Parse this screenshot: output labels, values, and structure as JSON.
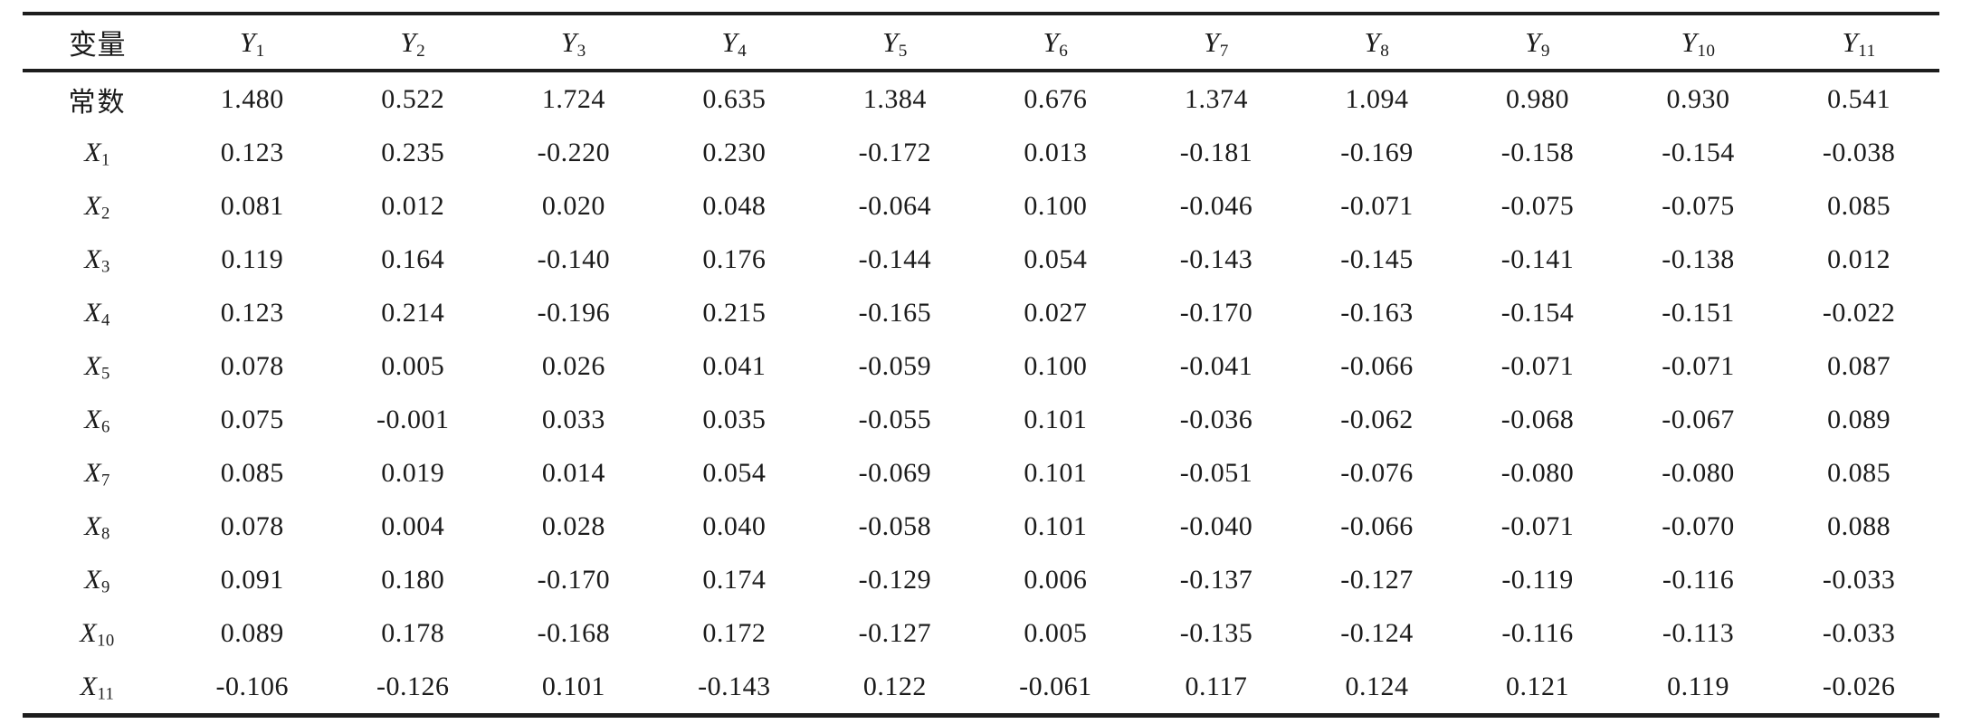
{
  "table": {
    "row_header_label": "变量",
    "columns": [
      {
        "base": "Y",
        "sub": "1"
      },
      {
        "base": "Y",
        "sub": "2"
      },
      {
        "base": "Y",
        "sub": "3"
      },
      {
        "base": "Y",
        "sub": "4"
      },
      {
        "base": "Y",
        "sub": "5"
      },
      {
        "base": "Y",
        "sub": "6"
      },
      {
        "base": "Y",
        "sub": "7"
      },
      {
        "base": "Y",
        "sub": "8"
      },
      {
        "base": "Y",
        "sub": "9"
      },
      {
        "base": "Y",
        "sub": "10"
      },
      {
        "base": "Y",
        "sub": "11"
      }
    ],
    "rows": [
      {
        "label": {
          "text": "常数"
        },
        "values": [
          "1.480",
          "0.522",
          "1.724",
          "0.635",
          "1.384",
          "0.676",
          "1.374",
          "1.094",
          "0.980",
          "0.930",
          "0.541"
        ]
      },
      {
        "label": {
          "base": "X",
          "sub": "1"
        },
        "values": [
          "0.123",
          "0.235",
          "-0.220",
          "0.230",
          "-0.172",
          "0.013",
          "-0.181",
          "-0.169",
          "-0.158",
          "-0.154",
          "-0.038"
        ]
      },
      {
        "label": {
          "base": "X",
          "sub": "2"
        },
        "values": [
          "0.081",
          "0.012",
          "0.020",
          "0.048",
          "-0.064",
          "0.100",
          "-0.046",
          "-0.071",
          "-0.075",
          "-0.075",
          "0.085"
        ]
      },
      {
        "label": {
          "base": "X",
          "sub": "3"
        },
        "values": [
          "0.119",
          "0.164",
          "-0.140",
          "0.176",
          "-0.144",
          "0.054",
          "-0.143",
          "-0.145",
          "-0.141",
          "-0.138",
          "0.012"
        ]
      },
      {
        "label": {
          "base": "X",
          "sub": "4"
        },
        "values": [
          "0.123",
          "0.214",
          "-0.196",
          "0.215",
          "-0.165",
          "0.027",
          "-0.170",
          "-0.163",
          "-0.154",
          "-0.151",
          "-0.022"
        ]
      },
      {
        "label": {
          "base": "X",
          "sub": "5"
        },
        "values": [
          "0.078",
          "0.005",
          "0.026",
          "0.041",
          "-0.059",
          "0.100",
          "-0.041",
          "-0.066",
          "-0.071",
          "-0.071",
          "0.087"
        ]
      },
      {
        "label": {
          "base": "X",
          "sub": "6"
        },
        "values": [
          "0.075",
          "-0.001",
          "0.033",
          "0.035",
          "-0.055",
          "0.101",
          "-0.036",
          "-0.062",
          "-0.068",
          "-0.067",
          "0.089"
        ]
      },
      {
        "label": {
          "base": "X",
          "sub": "7"
        },
        "values": [
          "0.085",
          "0.019",
          "0.014",
          "0.054",
          "-0.069",
          "0.101",
          "-0.051",
          "-0.076",
          "-0.080",
          "-0.080",
          "0.085"
        ]
      },
      {
        "label": {
          "base": "X",
          "sub": "8"
        },
        "values": [
          "0.078",
          "0.004",
          "0.028",
          "0.040",
          "-0.058",
          "0.101",
          "-0.040",
          "-0.066",
          "-0.071",
          "-0.070",
          "0.088"
        ]
      },
      {
        "label": {
          "base": "X",
          "sub": "9"
        },
        "values": [
          "0.091",
          "0.180",
          "-0.170",
          "0.174",
          "-0.129",
          "0.006",
          "-0.137",
          "-0.127",
          "-0.119",
          "-0.116",
          "-0.033"
        ]
      },
      {
        "label": {
          "base": "X",
          "sub": "10"
        },
        "values": [
          "0.089",
          "0.178",
          "-0.168",
          "0.172",
          "-0.127",
          "0.005",
          "-0.135",
          "-0.124",
          "-0.116",
          "-0.113",
          "-0.033"
        ]
      },
      {
        "label": {
          "base": "X",
          "sub": "11"
        },
        "values": [
          "-0.106",
          "-0.126",
          "0.101",
          "-0.143",
          "0.122",
          "-0.061",
          "0.117",
          "0.124",
          "0.121",
          "0.119",
          "-0.026"
        ]
      }
    ]
  },
  "chart_data": {
    "type": "table",
    "columns": [
      "变量",
      "Y1",
      "Y2",
      "Y3",
      "Y4",
      "Y5",
      "Y6",
      "Y7",
      "Y8",
      "Y9",
      "Y10",
      "Y11"
    ],
    "rows": [
      {
        "label": "常数",
        "values": [
          1.48,
          0.522,
          1.724,
          0.635,
          1.384,
          0.676,
          1.374,
          1.094,
          0.98,
          0.93,
          0.541
        ]
      },
      {
        "label": "X1",
        "values": [
          0.123,
          0.235,
          -0.22,
          0.23,
          -0.172,
          0.013,
          -0.181,
          -0.169,
          -0.158,
          -0.154,
          -0.038
        ]
      },
      {
        "label": "X2",
        "values": [
          0.081,
          0.012,
          0.02,
          0.048,
          -0.064,
          0.1,
          -0.046,
          -0.071,
          -0.075,
          -0.075,
          0.085
        ]
      },
      {
        "label": "X3",
        "values": [
          0.119,
          0.164,
          -0.14,
          0.176,
          -0.144,
          0.054,
          -0.143,
          -0.145,
          -0.141,
          -0.138,
          0.012
        ]
      },
      {
        "label": "X4",
        "values": [
          0.123,
          0.214,
          -0.196,
          0.215,
          -0.165,
          0.027,
          -0.17,
          -0.163,
          -0.154,
          -0.151,
          -0.022
        ]
      },
      {
        "label": "X5",
        "values": [
          0.078,
          0.005,
          0.026,
          0.041,
          -0.059,
          0.1,
          -0.041,
          -0.066,
          -0.071,
          -0.071,
          0.087
        ]
      },
      {
        "label": "X6",
        "values": [
          0.075,
          -0.001,
          0.033,
          0.035,
          -0.055,
          0.101,
          -0.036,
          -0.062,
          -0.068,
          -0.067,
          0.089
        ]
      },
      {
        "label": "X7",
        "values": [
          0.085,
          0.019,
          0.014,
          0.054,
          -0.069,
          0.101,
          -0.051,
          -0.076,
          -0.08,
          -0.08,
          0.085
        ]
      },
      {
        "label": "X8",
        "values": [
          0.078,
          0.004,
          0.028,
          0.04,
          -0.058,
          0.101,
          -0.04,
          -0.066,
          -0.071,
          -0.07,
          0.088
        ]
      },
      {
        "label": "X9",
        "values": [
          0.091,
          0.18,
          -0.17,
          0.174,
          -0.129,
          0.006,
          -0.137,
          -0.127,
          -0.119,
          -0.116,
          -0.033
        ]
      },
      {
        "label": "X10",
        "values": [
          0.089,
          0.178,
          -0.168,
          0.172,
          -0.127,
          0.005,
          -0.135,
          -0.124,
          -0.116,
          -0.113,
          -0.033
        ]
      },
      {
        "label": "X11",
        "values": [
          -0.106,
          -0.126,
          0.101,
          -0.143,
          0.122,
          -0.061,
          0.117,
          0.124,
          0.121,
          0.119,
          -0.026
        ]
      }
    ]
  }
}
